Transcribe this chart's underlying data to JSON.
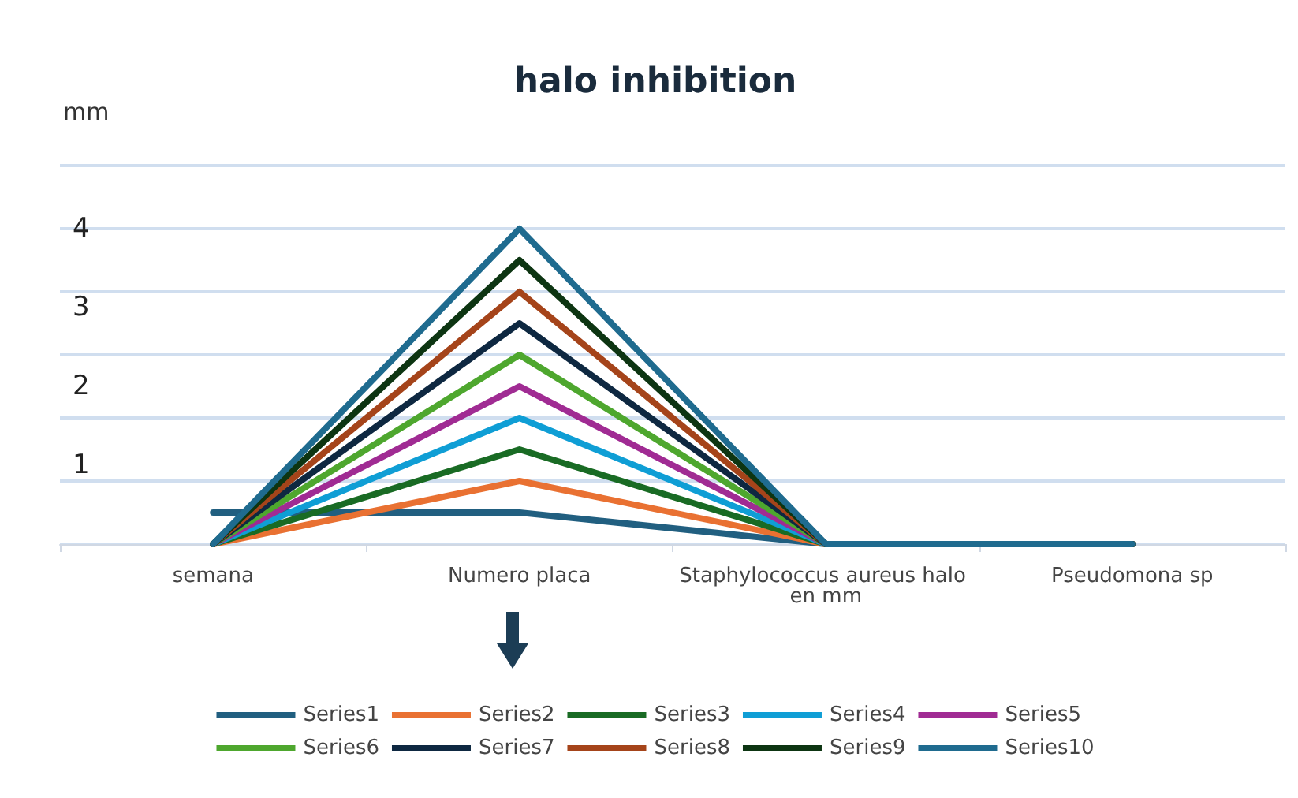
{
  "chart_data": {
    "type": "line",
    "title": "halo inhibition",
    "ylabel": "mm",
    "categories": [
      "semana",
      "Numero placa",
      "Staphylococcus aureus halo en mm",
      "Pseudomona sp"
    ],
    "series": [
      {
        "name": "Series1",
        "color": "#215f80",
        "values": [
          0.4,
          0.4,
          0,
          0
        ]
      },
      {
        "name": "Series2",
        "color": "#e97132",
        "values": [
          0,
          0.8,
          0,
          0
        ]
      },
      {
        "name": "Series3",
        "color": "#196b24",
        "values": [
          0,
          1.2,
          0,
          0
        ]
      },
      {
        "name": "Series4",
        "color": "#0f9ed5",
        "values": [
          0,
          1.6,
          0,
          0
        ]
      },
      {
        "name": "Series5",
        "color": "#a02b93",
        "values": [
          0,
          2.0,
          0,
          0
        ]
      },
      {
        "name": "Series6",
        "color": "#4ea72e",
        "values": [
          0,
          2.4,
          0,
          0
        ]
      },
      {
        "name": "Series7",
        "color": "#0e2841",
        "values": [
          0,
          2.8,
          0,
          0
        ]
      },
      {
        "name": "Series8",
        "color": "#a5441a",
        "values": [
          0,
          3.2,
          0,
          0
        ]
      },
      {
        "name": "Series9",
        "color": "#0d3512",
        "values": [
          0,
          3.6,
          0,
          0
        ]
      },
      {
        "name": "Series10",
        "color": "#1f6b8f",
        "values": [
          0,
          4.0,
          0,
          0
        ]
      }
    ],
    "ylim": [
      0,
      4.8
    ],
    "yticks": [
      {
        "value": 0,
        "label": null
      },
      {
        "value": 0.8,
        "label": null
      },
      1,
      {
        "value": 1.6,
        "label": null
      },
      2,
      {
        "value": 2.4,
        "label": null
      },
      3,
      {
        "value": 3.2,
        "label": null
      },
      4,
      {
        "value": 4.0,
        "label": null
      },
      {
        "value": 4.8,
        "label": null
      }
    ],
    "grid": "y",
    "legend": "bottom",
    "marker": "none",
    "line_style": "solid"
  }
}
